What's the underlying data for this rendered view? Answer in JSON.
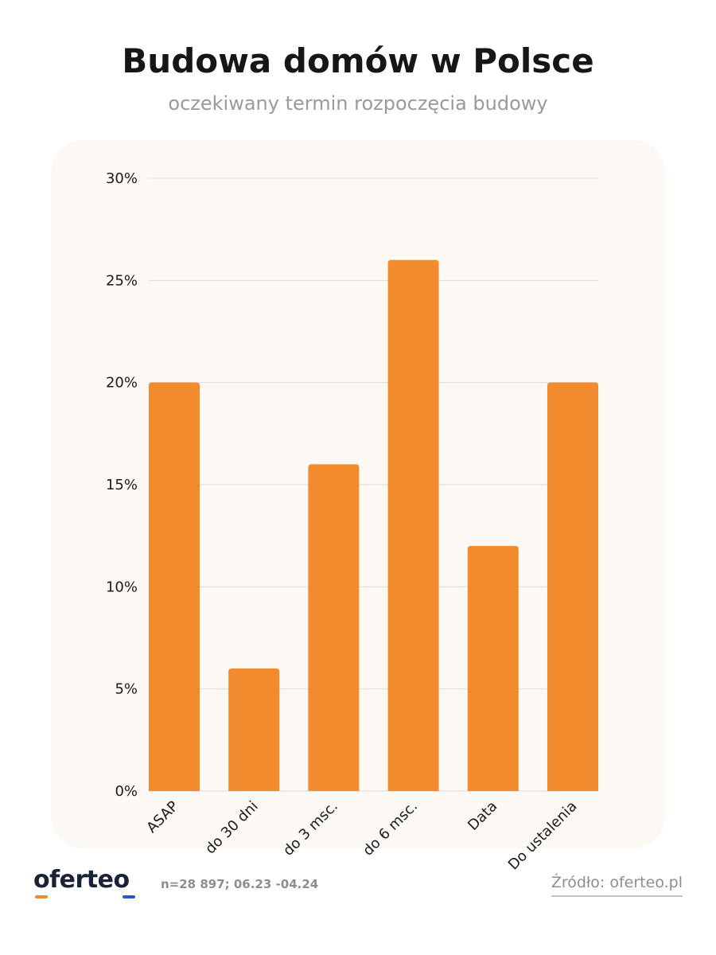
{
  "title": "Budowa domów w Polsce",
  "subtitle": "oczekiwany termin rozpoczęcia budowy",
  "footer": {
    "logo": "oferteo",
    "sample_note": "n=28 897; 06.23 -04.24",
    "source": "Źródło: oferteo.pl"
  },
  "colors": {
    "bar": "#f28a2e",
    "panel_bg": "#fcf9f5",
    "grid": "#dcdcdc",
    "logo_accent_orange": "#f28a2e",
    "logo_accent_blue": "#2c57c6"
  },
  "chart_data": {
    "type": "bar",
    "title": "Budowa domów w Polsce",
    "subtitle": "oczekiwany termin rozpoczęcia budowy",
    "categories": [
      "ASAP",
      "do 30 dni",
      "do 3 msc.",
      "do 6 msc.",
      "Data",
      "Do ustalenia"
    ],
    "values": [
      20,
      6,
      16,
      26,
      12,
      20
    ],
    "unit": "%",
    "ylim": [
      0,
      30
    ],
    "yticks": [
      0,
      5,
      10,
      15,
      20,
      25,
      30
    ],
    "ytick_labels": [
      "0%",
      "5%",
      "10%",
      "15%",
      "20%",
      "25%",
      "30%"
    ],
    "grid": true,
    "legend": "none"
  }
}
